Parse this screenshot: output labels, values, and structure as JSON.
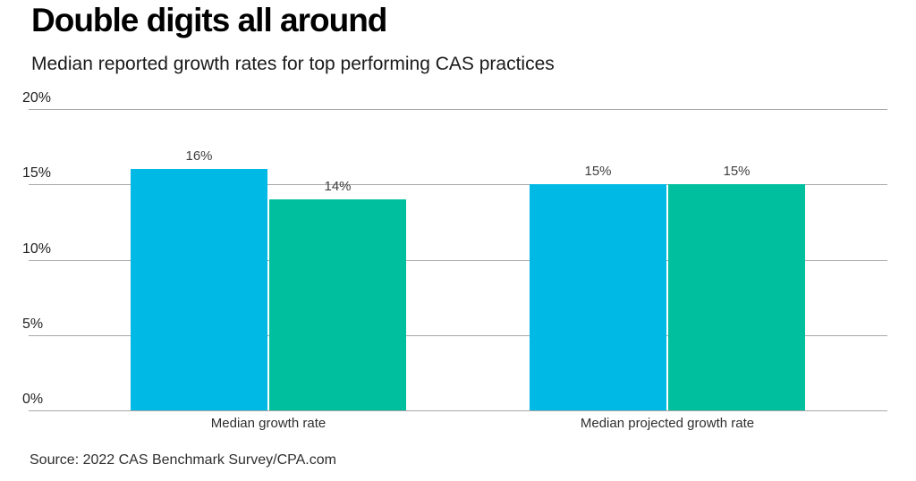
{
  "title": "Double digits all around",
  "subtitle": "Median reported growth rates for top performing CAS practices",
  "source_note": "Source: 2022 CAS Benchmark Survey/CPA.com",
  "chart_data": {
    "type": "bar",
    "title": "Double digits all around",
    "subtitle": "Median reported growth rates for top performing CAS practices",
    "categories": [
      "Median growth rate",
      "Median projected growth rate"
    ],
    "series": [
      {
        "color": "#00b9e4",
        "values": [
          16,
          15
        ],
        "data_labels": [
          "16%",
          "15%"
        ]
      },
      {
        "color": "#00bf9e",
        "values": [
          14,
          15
        ],
        "data_labels": [
          "14%",
          "15%"
        ]
      }
    ],
    "xlabel": "",
    "ylabel": "",
    "ylim": [
      0,
      20
    ],
    "ytick_labels": [
      "20%",
      "15%",
      "10%",
      "5%",
      "0%"
    ],
    "grid": true,
    "legend": false,
    "source": "Source: 2022 CAS Benchmark Survey/CPA.com",
    "style_colors": {
      "bar_cyan": "#00b9e4",
      "bar_green": "#00bf9e",
      "gridline": "#a8a8a8",
      "value_label": "#3f3f3f",
      "tick_label": "#1f1f1f",
      "category_label": "#2e2e2e"
    }
  }
}
